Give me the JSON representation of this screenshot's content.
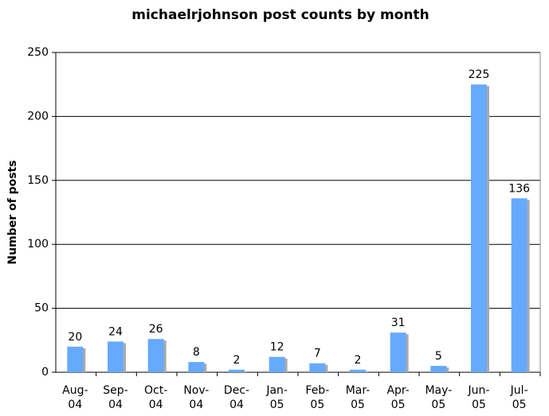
{
  "chart_data": {
    "type": "bar",
    "title": "michaelrjohnson post counts by month",
    "y_label": "Number of posts",
    "categories": [
      "Aug-04",
      "Sep-04",
      "Oct-04",
      "Nov-04",
      "Dec-04",
      "Jan-05",
      "Feb-05",
      "Mar-05",
      "Apr-05",
      "May-05",
      "Jun-05",
      "Jul-05"
    ],
    "values": [
      20,
      24,
      26,
      8,
      2,
      12,
      7,
      2,
      31,
      5,
      225,
      136
    ],
    "color": "#66aaff",
    "ylim": [
      0,
      250
    ],
    "yticks": [
      0,
      50,
      100,
      150,
      200,
      250
    ],
    "grid": true
  }
}
